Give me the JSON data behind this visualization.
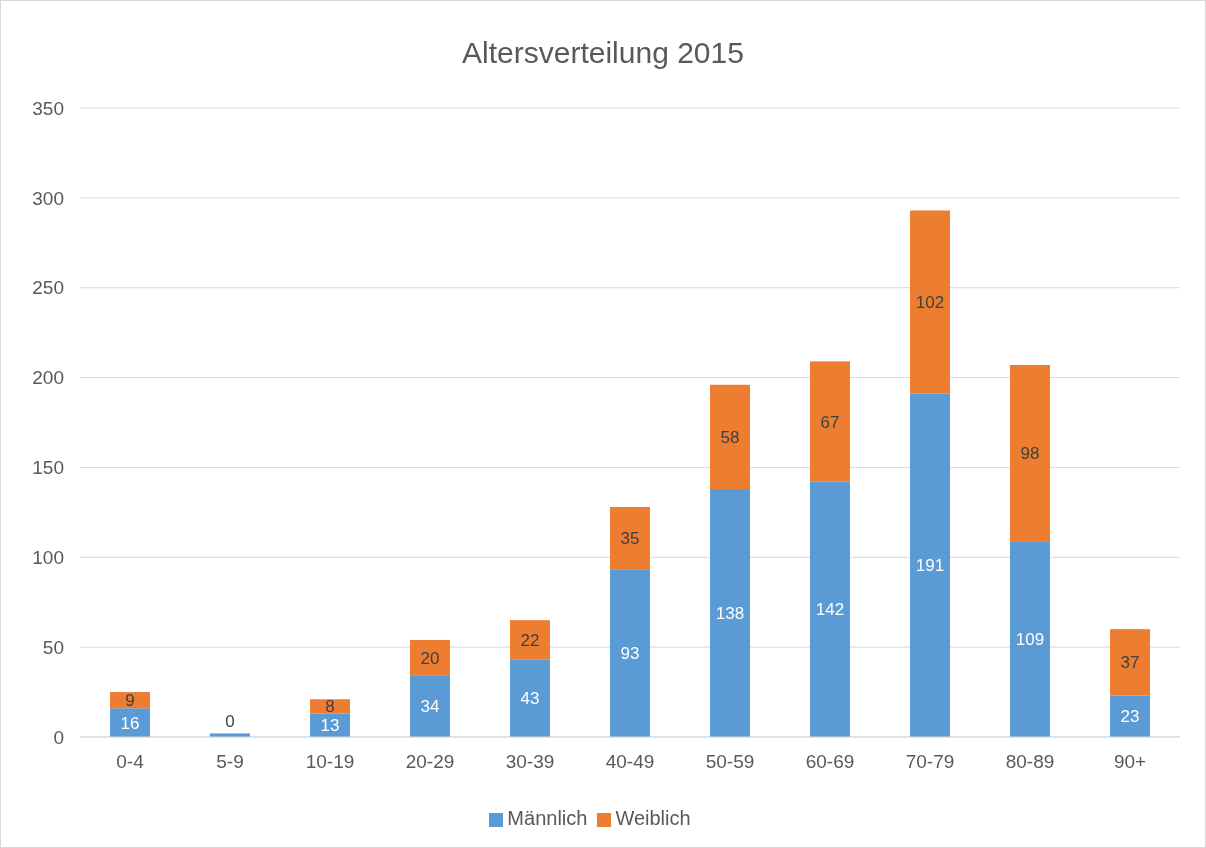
{
  "chart_data": {
    "type": "bar",
    "title": "Altersverteilung 2015",
    "stacked": true,
    "categories": [
      "0-4",
      "5-9",
      "10-19",
      "20-29",
      "30-39",
      "40-49",
      "50-59",
      "60-69",
      "70-79",
      "80-89",
      "90+"
    ],
    "series": [
      {
        "name": "Männlich",
        "color": "#5b9bd5",
        "values": [
          16,
          2,
          13,
          34,
          43,
          93,
          138,
          142,
          191,
          109,
          23
        ],
        "value_labels": [
          "16",
          null,
          "13",
          "34",
          "43",
          "93",
          "138",
          "142",
          "191",
          "109",
          "23"
        ]
      },
      {
        "name": "Weiblich",
        "color": "#ed7d31",
        "values": [
          9,
          0,
          8,
          20,
          22,
          35,
          58,
          67,
          102,
          98,
          37
        ],
        "value_labels": [
          "9",
          "0",
          "8",
          "20",
          "22",
          "35",
          "58",
          "67",
          "102",
          "98",
          "37"
        ]
      }
    ],
    "ylim": [
      0,
      350
    ],
    "yticks": [
      0,
      50,
      100,
      150,
      200,
      250,
      300,
      350
    ],
    "grid": "y",
    "legend": "bottom"
  }
}
